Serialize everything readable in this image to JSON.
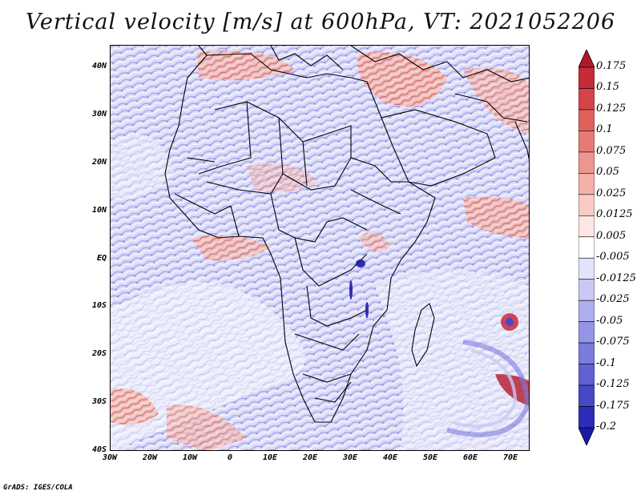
{
  "title": "Vertical velocity [m/s] at 600hPa, VT: 2021052206",
  "credit": "GrADS: IGES/COLA",
  "map": {
    "lon_range": [
      -30,
      75
    ],
    "lat_range": [
      -40,
      45
    ],
    "lat_ticks": [
      "40N",
      "30N",
      "20N",
      "10N",
      "EQ",
      "10S",
      "20S",
      "30S",
      "40S"
    ],
    "lon_ticks": [
      "30W",
      "20W",
      "10W",
      "0",
      "10E",
      "20E",
      "30E",
      "40E",
      "50E",
      "60E",
      "70E"
    ],
    "field": "vertical velocity",
    "level": "600hPa",
    "valid_time": "2021052206"
  },
  "colorbar": {
    "labels": [
      "0.175",
      "0.15",
      "0.125",
      "0.1",
      "0.075",
      "0.05",
      "0.025",
      "0.0125",
      "0.005",
      "-0.005",
      "-0.0125",
      "-0.025",
      "-0.05",
      "-0.075",
      "-0.1",
      "-0.125",
      "-0.175",
      "-0.2"
    ],
    "colors": [
      "#b2182b",
      "#c62b37",
      "#d6444a",
      "#e0605e",
      "#e87a76",
      "#ef958f",
      "#f4b0a9",
      "#f8cbc6",
      "#fde6e3",
      "#ffffff",
      "#e3e3fb",
      "#c9c9f5",
      "#afafee",
      "#9595e6",
      "#7b7bdd",
      "#6161d3",
      "#4747c8",
      "#2d2dbb",
      "#1a1aa8"
    ]
  }
}
